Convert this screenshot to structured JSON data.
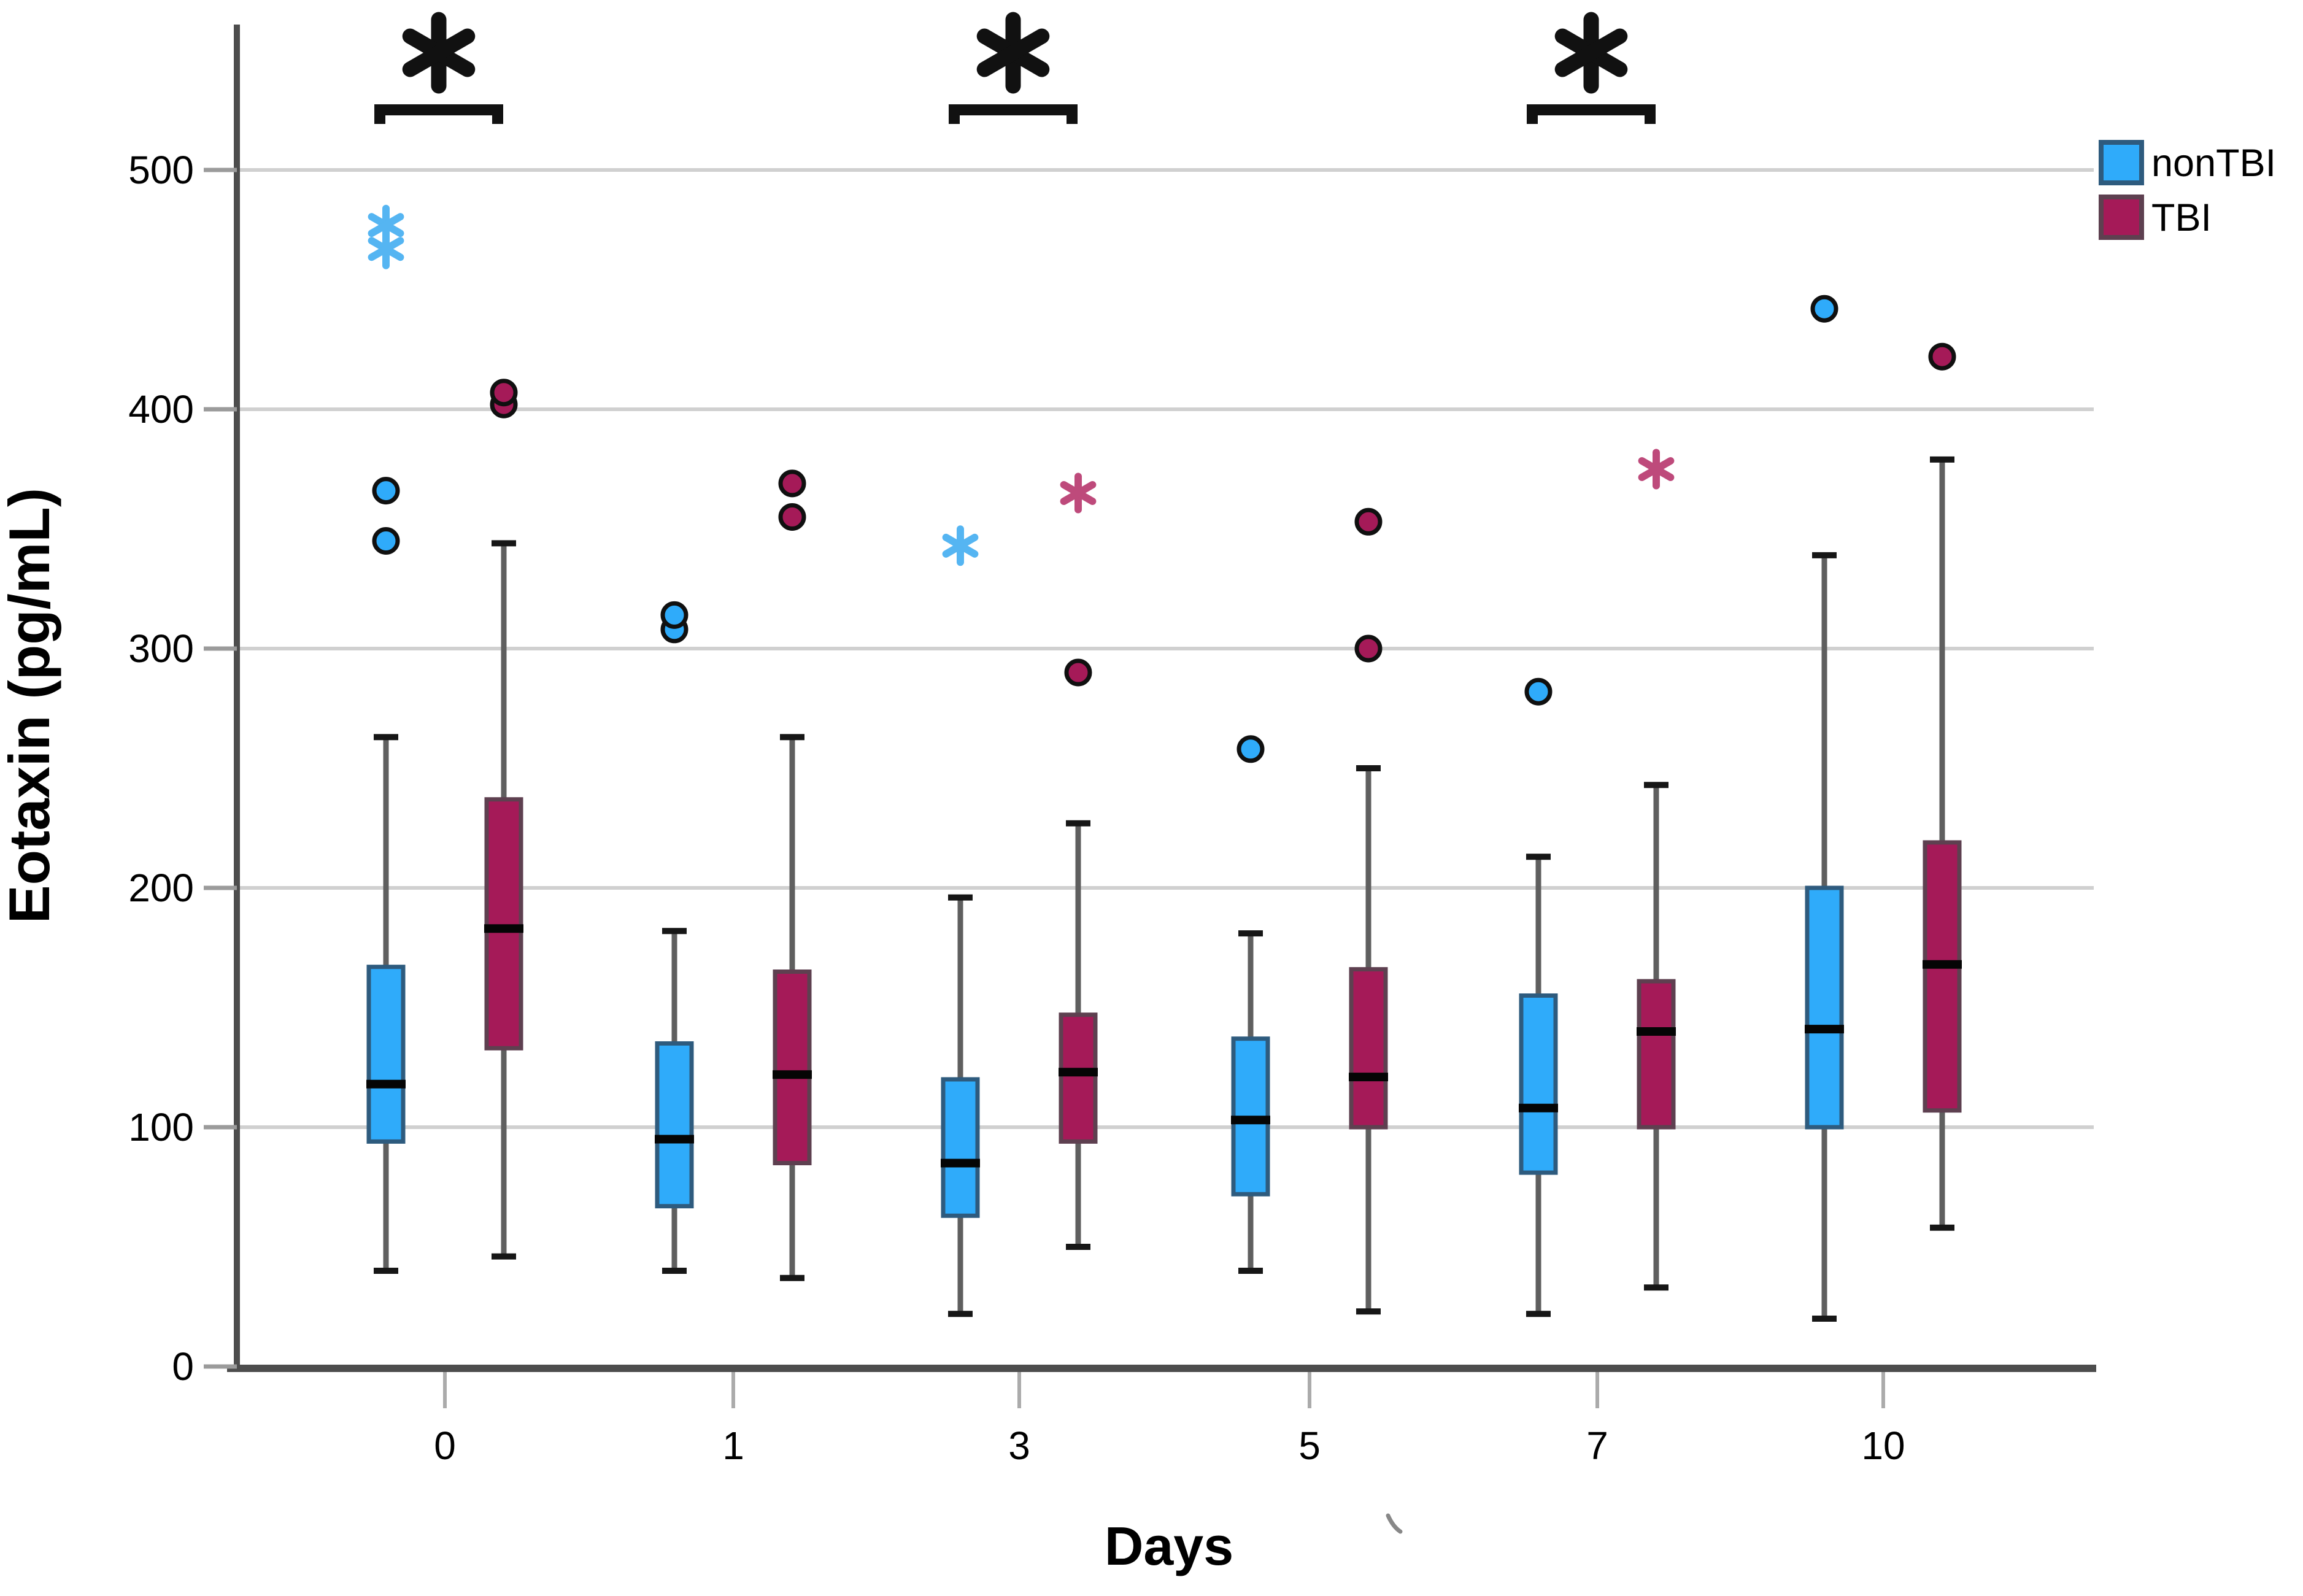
{
  "axes": {
    "ylabel": "Eotaxin (pg/mL)",
    "xlabel": "Days",
    "yticks": [
      "0",
      "100",
      "200",
      "300",
      "400",
      "500"
    ],
    "xticks": [
      "0",
      "1",
      "3",
      "5",
      "7",
      "10"
    ]
  },
  "legend": {
    "items": [
      {
        "label": "nonTBI",
        "color": "#2FABFA",
        "border": "#2E5B7E"
      },
      {
        "label": "TBI",
        "color": "#A51A58",
        "border": "#5E4050"
      }
    ]
  },
  "style": {
    "background": "#FFFFFF",
    "gridline": "#D0D0D0",
    "axis": "#4D4D4D",
    "tick": "#9B9B9B",
    "median": "#050505",
    "whisker_stem": "#5F5F5F",
    "whisker_cap": "#161616",
    "significance": "#111111"
  },
  "chart_data": {
    "type": "box",
    "title": "",
    "xlabel": "Days",
    "ylabel": "Eotaxin (pg/mL)",
    "ylim": [
      0,
      560
    ],
    "grid": true,
    "legend_position": "top-right",
    "categories": [
      "0",
      "1",
      "3",
      "5",
      "7",
      "10"
    ],
    "series": [
      {
        "name": "nonTBI",
        "color": "#2FABFA",
        "border_color": "#2E5B7E",
        "extreme_color": "#55B5F2",
        "boxes": [
          {
            "whisker_low": 40,
            "q1": 94,
            "median": 118,
            "q3": 167,
            "whisker_high": 263,
            "outliers": [
              345,
              366
            ],
            "extreme_outliers": [
              467,
              477
            ]
          },
          {
            "whisker_low": 40,
            "q1": 67,
            "median": 95,
            "q3": 135,
            "whisker_high": 182,
            "outliers": [
              308,
              314
            ],
            "extreme_outliers": []
          },
          {
            "whisker_low": 22,
            "q1": 63,
            "median": 85,
            "q3": 120,
            "whisker_high": 196,
            "outliers": [],
            "extreme_outliers": [
              343
            ]
          },
          {
            "whisker_low": 40,
            "q1": 72,
            "median": 103,
            "q3": 137,
            "whisker_high": 181,
            "outliers": [
              258
            ],
            "extreme_outliers": []
          },
          {
            "whisker_low": 22,
            "q1": 81,
            "median": 108,
            "q3": 155,
            "whisker_high": 213,
            "outliers": [
              282
            ],
            "extreme_outliers": []
          },
          {
            "whisker_low": 20,
            "q1": 100,
            "median": 141,
            "q3": 200,
            "whisker_high": 339,
            "outliers": [
              442
            ],
            "extreme_outliers": []
          }
        ]
      },
      {
        "name": "TBI",
        "color": "#A51A58",
        "border_color": "#5E4050",
        "extreme_color": "#BE4A7B",
        "boxes": [
          {
            "whisker_low": 46,
            "q1": 133,
            "median": 183,
            "q3": 237,
            "whisker_high": 344,
            "outliers": [
              402,
              407
            ],
            "extreme_outliers": []
          },
          {
            "whisker_low": 37,
            "q1": 85,
            "median": 122,
            "q3": 165,
            "whisker_high": 263,
            "outliers": [
              355,
              369
            ],
            "extreme_outliers": []
          },
          {
            "whisker_low": 50,
            "q1": 94,
            "median": 123,
            "q3": 147,
            "whisker_high": 227,
            "outliers": [
              290
            ],
            "extreme_outliers": [
              365
            ]
          },
          {
            "whisker_low": 23,
            "q1": 100,
            "median": 121,
            "q3": 166,
            "whisker_high": 250,
            "outliers": [
              300,
              353
            ],
            "extreme_outliers": []
          },
          {
            "whisker_low": 33,
            "q1": 100,
            "median": 140,
            "q3": 161,
            "whisker_high": 243,
            "outliers": [],
            "extreme_outliers": [
              375
            ]
          },
          {
            "whisker_low": 58,
            "q1": 107,
            "median": 168,
            "q3": 219,
            "whisker_high": 379,
            "outliers": [
              422
            ],
            "extreme_outliers": []
          }
        ]
      }
    ],
    "significance_brackets": [
      {
        "category": "0",
        "symbol": "*"
      },
      {
        "category": "3",
        "symbol": "*"
      },
      {
        "category": "7",
        "symbol": "*"
      }
    ]
  }
}
